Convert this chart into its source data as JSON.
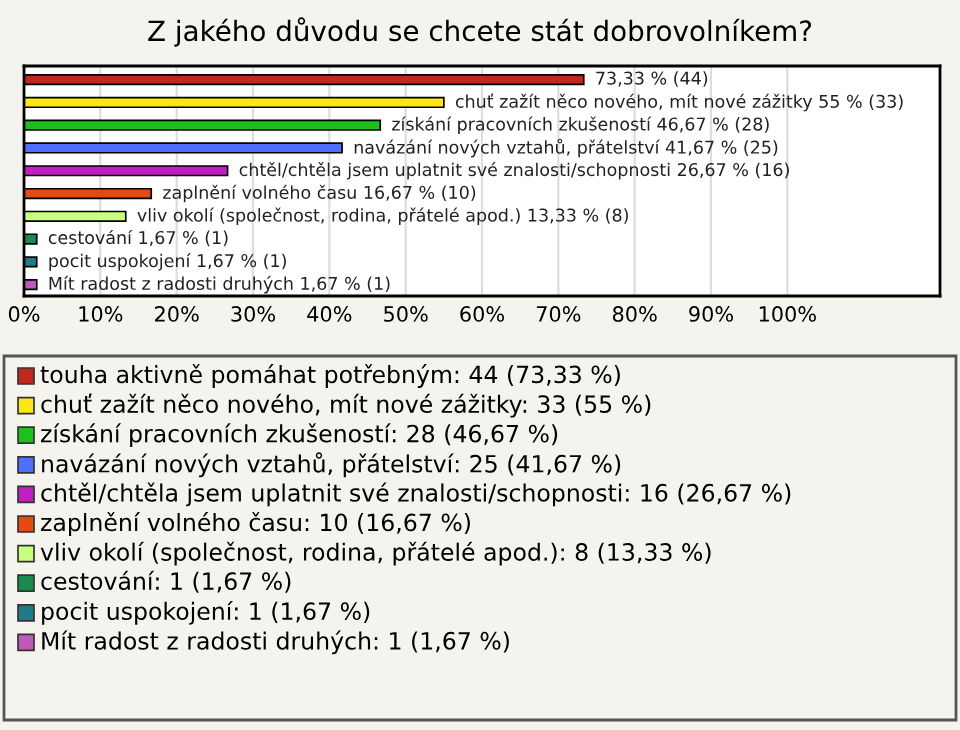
{
  "chart_data": {
    "type": "bar",
    "orientation": "horizontal",
    "title": "Z jakého důvodu se chcete stát dobrovolníkem?",
    "categories": [
      null,
      null,
      null,
      null,
      null,
      null,
      null,
      null,
      null,
      null
    ],
    "values": [
      73.33,
      55,
      46.67,
      41.67,
      26.67,
      16.67,
      13.33,
      1.67,
      1.67,
      1.67
    ],
    "colors": [
      "#c0281e",
      "#ffe619",
      "#1fbf1f",
      "#4f6fff",
      "#c21fc2",
      "#e64a14",
      "#c8ff80",
      "#1a8a50",
      "#1f7a8a",
      "#c05ab8"
    ],
    "value_labels": [
      "73,33 % (44)",
      "chuť zažít něco nového, mít nové zážitky 55 % (33)",
      "získání pracovních zkušeností 46,67 % (28)",
      "navázání nových vztahů, přátelství 41,67 % (25)",
      "chtěl/chtěla jsem uplatnit své znalosti/schopnosti 26,67 % (16)",
      "zaplnění volného času 16,67 % (10)",
      "vliv okolí (společnost, rodina, přátelé apod.) 13,33 % (8)",
      "cestování 1,67 % (1)",
      "pocit uspokojení 1,67 % (1)",
      "Mít radost z radosti druhých 1,67 % (1)"
    ],
    "xlim": [
      0,
      120
    ],
    "xticks": [
      {
        "value": 0,
        "label": "0%"
      },
      {
        "value": 10,
        "label": "10%"
      },
      {
        "value": 20,
        "label": "20%"
      },
      {
        "value": 30,
        "label": "30%"
      },
      {
        "value": 40,
        "label": "40%"
      },
      {
        "value": 50,
        "label": "50%"
      },
      {
        "value": 60,
        "label": "60%"
      },
      {
        "value": 70,
        "label": "70%"
      },
      {
        "value": 80,
        "label": "80%"
      },
      {
        "value": 90,
        "label": "90%"
      },
      {
        "value": 100,
        "label": "100%"
      }
    ],
    "grid": "x",
    "annotations": [
      "touha aktivně pomáhat potřebným: 44 (73,33 %)",
      "chuť zažít něco nového, mít nové zážitky: 33 (55 %)",
      "získání pracovních zkušeností: 28 (46,67 %)",
      "navázání nových vztahů, přátelství: 25 (41,67 %)",
      "chtěl/chtěla jsem uplatnit své znalosti/schopnosti: 16 (26,67 %)",
      "zaplnění volného času: 10 (16,67 %)",
      "vliv okolí (společnost, rodina, přátelé apod.): 8 (13,33 %)",
      "cestování: 1 (1,67 %)",
      "pocit uspokojení: 1 (1,67 %)",
      "Mít radost z radosti druhých: 1 (1,67 %)"
    ]
  }
}
